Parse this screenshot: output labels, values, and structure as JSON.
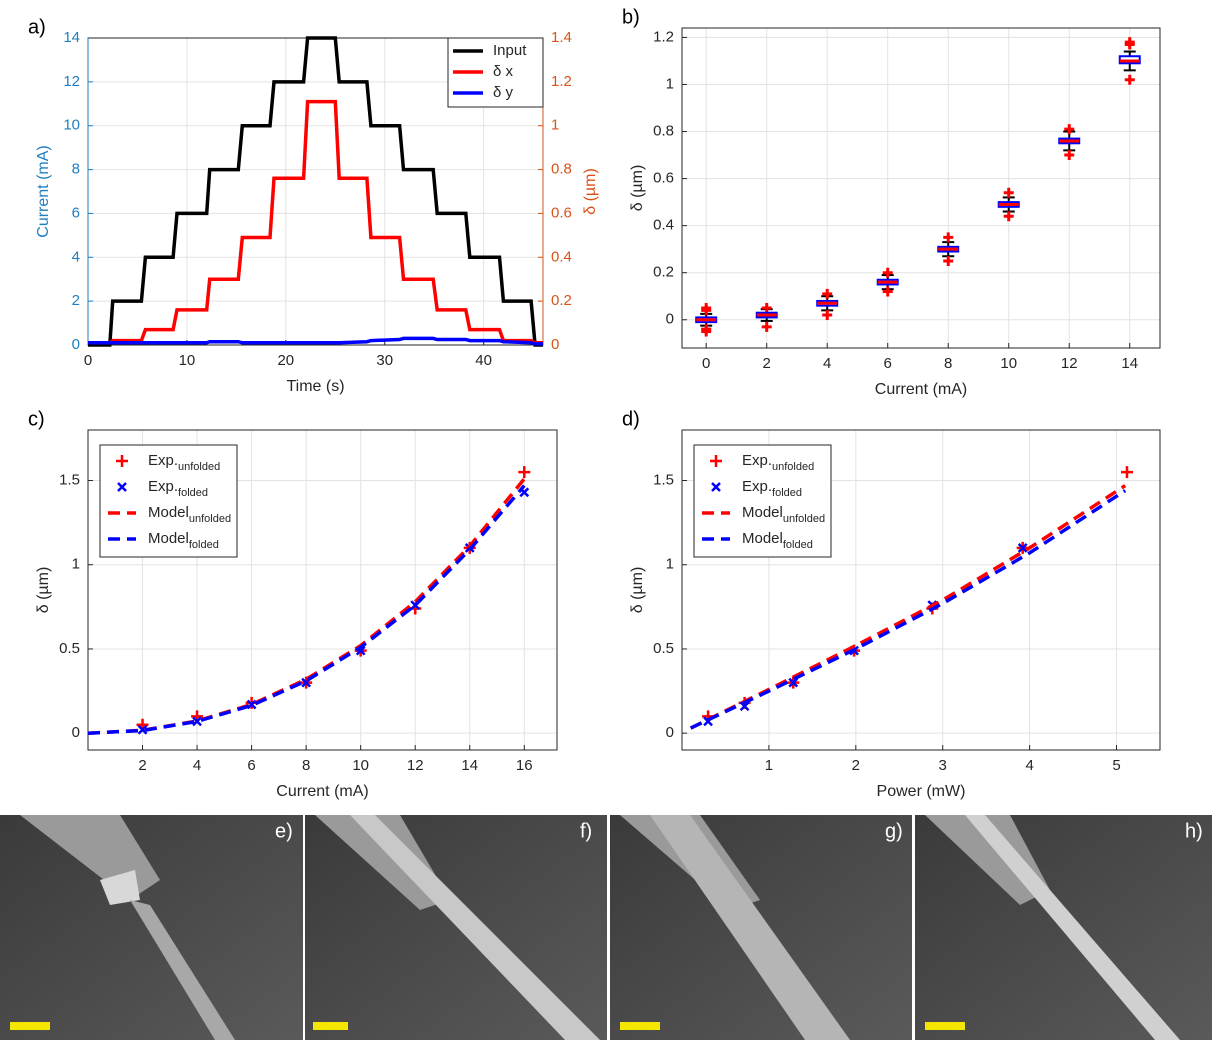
{
  "chart_data": [
    {
      "type": "line",
      "panel_label": "a)",
      "xlabel": "Time (s)",
      "ylabel": "Current (mA)",
      "y2label": "δ (µm)",
      "ycolor": "#1f7fbf",
      "y2color": "#d95319",
      "grid": true,
      "legend": "upper right",
      "xlim": [
        0,
        46
      ],
      "xticks": [
        0,
        10,
        20,
        30,
        40
      ],
      "ylim": [
        0,
        14
      ],
      "yticks": [
        0,
        2,
        4,
        6,
        8,
        10,
        12,
        14
      ],
      "y2lim": [
        0,
        1.4
      ],
      "y2ticks": [
        0,
        0.2,
        0.4,
        0.6,
        0.8,
        1,
        1.2,
        1.4
      ],
      "x": [
        0,
        2.2,
        2.5,
        5.4,
        5.8,
        8.6,
        9,
        12,
        12.3,
        15.2,
        15.6,
        18.4,
        18.8,
        21.8,
        22.2,
        25,
        25.4,
        28.2,
        28.6,
        31.5,
        31.9,
        34.9,
        35.3,
        38.2,
        38.6,
        41.6,
        42,
        44.8,
        45.2,
        46
      ],
      "series": [
        {
          "name": "Input",
          "color": "#000000",
          "values": [
            0,
            0,
            2,
            2,
            4,
            4,
            6,
            6,
            8,
            8,
            10,
            10,
            12,
            12,
            14,
            14,
            12,
            12,
            10,
            10,
            8,
            8,
            6,
            6,
            4,
            4,
            2,
            2,
            0,
            0
          ]
        },
        {
          "name": "δ x",
          "color": "#ff0000",
          "axis": "y2",
          "values": [
            0.01,
            0.01,
            0.02,
            0.02,
            0.07,
            0.07,
            0.16,
            0.16,
            0.3,
            0.3,
            0.49,
            0.49,
            0.76,
            0.76,
            1.11,
            1.11,
            0.76,
            0.76,
            0.49,
            0.49,
            0.3,
            0.3,
            0.16,
            0.16,
            0.07,
            0.07,
            0.02,
            0.02,
            0.01,
            0.01
          ]
        },
        {
          "name": "δ y",
          "color": "#0000ff",
          "axis": "y2",
          "values": [
            0.01,
            0.01,
            0.01,
            0.01,
            0.01,
            0.01,
            0.01,
            0.01,
            0.015,
            0.015,
            0.01,
            0.01,
            0.01,
            0.01,
            0.01,
            0.01,
            0.01,
            0.015,
            0.02,
            0.025,
            0.03,
            0.03,
            0.025,
            0.025,
            0.02,
            0.02,
            0.015,
            0.01,
            0.005,
            0.005
          ]
        }
      ]
    },
    {
      "type": "box",
      "panel_label": "b)",
      "xlabel": "Current (mA)",
      "ylabel": "δ (µm)",
      "grid": true,
      "xlim": [
        -0.8,
        15
      ],
      "xticks": [
        0,
        2,
        4,
        6,
        8,
        10,
        12,
        14
      ],
      "ylim": [
        -0.12,
        1.24
      ],
      "yticks": [
        0,
        0.2,
        0.4,
        0.6,
        0.8,
        1,
        1.2
      ],
      "box_color": "#0000ff",
      "median_color": "#ff0000",
      "whisker_color": "#000000",
      "outlier_color": "#ff0000",
      "x": [
        0,
        2,
        4,
        6,
        8,
        10,
        12,
        14
      ],
      "values": [
        0,
        0.02,
        0.07,
        0.16,
        0.3,
        0.49,
        0.76,
        1.1
      ],
      "q1": [
        -0.01,
        0.01,
        0.06,
        0.15,
        0.29,
        0.48,
        0.75,
        1.09
      ],
      "q3": [
        0.01,
        0.03,
        0.08,
        0.17,
        0.31,
        0.5,
        0.77,
        1.12
      ],
      "whisker_low": [
        -0.025,
        -0.005,
        0.04,
        0.13,
        0.27,
        0.46,
        0.72,
        1.06
      ],
      "whisker_high": [
        0.025,
        0.045,
        0.1,
        0.19,
        0.33,
        0.52,
        0.8,
        1.14
      ],
      "outliers": [
        [
          -0.05,
          -0.04,
          0.04,
          0.05
        ],
        [
          -0.03,
          0.05
        ],
        [
          0.02,
          0.11
        ],
        [
          0.12,
          0.2
        ],
        [
          0.25,
          0.35
        ],
        [
          0.44,
          0.54
        ],
        [
          0.7,
          0.81
        ],
        [
          1.02,
          1.17,
          1.18
        ]
      ]
    },
    {
      "type": "scatter",
      "panel_label": "c)",
      "xlabel": "Current (mA)",
      "ylabel": "δ (µm)",
      "grid": true,
      "legend": "upper left",
      "xlim": [
        0,
        17.2
      ],
      "xticks": [
        2,
        4,
        6,
        8,
        10,
        12,
        14,
        16
      ],
      "ylim": [
        -0.1,
        1.8
      ],
      "yticks": [
        0,
        0.5,
        1,
        1.5
      ],
      "series": [
        {
          "name": "Exp.",
          "name_sub": "unfolded",
          "color": "#ff0000",
          "marker": "+",
          "x": [
            2,
            4,
            6,
            8,
            10,
            12,
            14,
            16
          ],
          "values": [
            0.05,
            0.1,
            0.18,
            0.3,
            0.49,
            0.74,
            1.1,
            1.55
          ]
        },
        {
          "name": "Exp.",
          "name_sub": "folded",
          "color": "#0000ff",
          "marker": "x",
          "x": [
            2,
            4,
            6,
            8,
            10,
            12,
            14,
            16
          ],
          "values": [
            0.02,
            0.07,
            0.17,
            0.3,
            0.49,
            0.76,
            1.1,
            1.43
          ]
        },
        {
          "name": "Model",
          "name_sub": "unfolded",
          "color": "#ff0000",
          "line": "dashed",
          "x": [
            0,
            2,
            4,
            6,
            8,
            10,
            12,
            14,
            16
          ],
          "values": [
            0,
            0.017,
            0.072,
            0.17,
            0.32,
            0.52,
            0.78,
            1.11,
            1.51
          ]
        },
        {
          "name": "Model",
          "name_sub": "folded",
          "color": "#0000ff",
          "line": "dashed",
          "x": [
            0,
            2,
            4,
            6,
            8,
            10,
            12,
            14,
            16
          ],
          "values": [
            0,
            0.016,
            0.07,
            0.165,
            0.31,
            0.51,
            0.76,
            1.09,
            1.47
          ]
        }
      ]
    },
    {
      "type": "scatter",
      "panel_label": "d)",
      "xlabel": "Power (mW)",
      "ylabel": "δ (µm)",
      "grid": true,
      "legend": "upper left",
      "xlim": [
        0,
        5.5
      ],
      "xticks": [
        1,
        2,
        3,
        4,
        5
      ],
      "ylim": [
        -0.1,
        1.8
      ],
      "yticks": [
        0,
        0.5,
        1,
        1.5
      ],
      "series": [
        {
          "name": "Exp.",
          "name_sub": "unfolded",
          "color": "#ff0000",
          "marker": "+",
          "x": [
            0.3,
            0.72,
            1.28,
            1.98,
            2.88,
            3.92,
            5.12
          ],
          "values": [
            0.1,
            0.18,
            0.3,
            0.49,
            0.74,
            1.1,
            1.55
          ]
        },
        {
          "name": "Exp.",
          "name_sub": "folded",
          "color": "#0000ff",
          "marker": "x",
          "x": [
            0.3,
            0.72,
            1.28,
            1.98,
            2.88,
            3.92
          ],
          "values": [
            0.07,
            0.16,
            0.3,
            0.49,
            0.76,
            1.1
          ]
        },
        {
          "name": "Model",
          "name_sub": "unfolded",
          "color": "#ff0000",
          "line": "dashed",
          "x": [
            0.1,
            1,
            2,
            3,
            4,
            5.1
          ],
          "values": [
            0.03,
            0.26,
            0.52,
            0.79,
            1.1,
            1.47
          ]
        },
        {
          "name": "Model",
          "name_sub": "folded",
          "color": "#0000ff",
          "line": "dashed",
          "x": [
            0.1,
            1,
            2,
            3,
            4,
            5.1
          ],
          "values": [
            0.03,
            0.25,
            0.5,
            0.77,
            1.07,
            1.44
          ]
        }
      ]
    }
  ],
  "images": [
    {
      "label": "e)"
    },
    {
      "label": "f)"
    },
    {
      "label": "g)"
    },
    {
      "label": "h)"
    }
  ]
}
